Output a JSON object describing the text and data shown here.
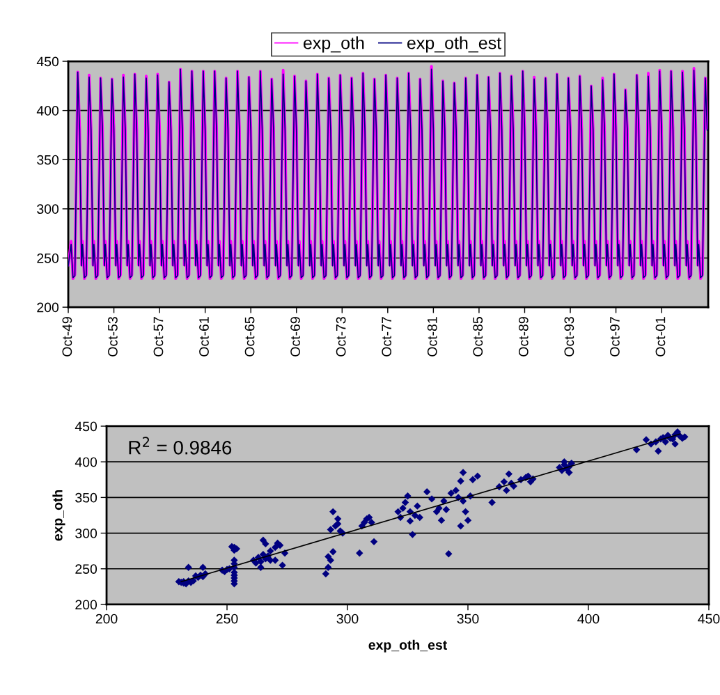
{
  "chart_data": [
    {
      "type": "line",
      "legend": "top",
      "grid": "y",
      "ylim": [
        200,
        450
      ],
      "yticks": [
        200,
        250,
        300,
        350,
        400,
        450
      ],
      "xlim": [
        "1949-10",
        "2005-11"
      ],
      "xticks": [
        {
          "value": "1949-10",
          "label": "Oct-49"
        },
        {
          "value": "1953-10",
          "label": "Oct-53"
        },
        {
          "value": "1957-10",
          "label": "Oct-57"
        },
        {
          "value": "1961-10",
          "label": "Oct-61"
        },
        {
          "value": "1965-10",
          "label": "Oct-65"
        },
        {
          "value": "1969-10",
          "label": "Oct-69"
        },
        {
          "value": "1973-10",
          "label": "Oct-73"
        },
        {
          "value": "1977-10",
          "label": "Oct-77"
        },
        {
          "value": "1981-10",
          "label": "Oct-81"
        },
        {
          "value": "1985-10",
          "label": "Oct-85"
        },
        {
          "value": "1989-10",
          "label": "Oct-89"
        },
        {
          "value": "1993-10",
          "label": "Oct-93"
        },
        {
          "value": "1997-10",
          "label": "Oct-97"
        },
        {
          "value": "2001-10",
          "label": "Oct-01"
        }
      ],
      "x": [
        "1949-10",
        "1950-01",
        "1950-03",
        "1950-05",
        "1950-08",
        "1950-10",
        "1950-12",
        "1951-01",
        "1951-03",
        "1951-05",
        "1951-08",
        "1951-10",
        "1951-12",
        "1952-01",
        "1952-03",
        "1952-05",
        "1952-08",
        "1952-10",
        "1952-12",
        "1953-01",
        "1953-03",
        "1953-05",
        "1953-08",
        "1953-10",
        "1953-12",
        "1954-01",
        "1954-03",
        "1954-05",
        "1954-08",
        "1954-10",
        "1954-12",
        "1955-01",
        "1955-03",
        "1955-05",
        "1955-08",
        "1955-10",
        "1955-12",
        "1956-01",
        "1956-03",
        "1956-05",
        "1956-08",
        "1956-10",
        "1956-12",
        "1957-01",
        "1957-03",
        "1957-05",
        "1957-08",
        "1957-10",
        "1957-12",
        "1958-01",
        "1958-03",
        "1958-05",
        "1958-08",
        "1958-10",
        "1958-12",
        "1959-01",
        "1959-03",
        "1959-05",
        "1959-08",
        "1959-10",
        "1959-12",
        "1960-01",
        "1960-03",
        "1960-05",
        "1960-08",
        "1960-10",
        "1960-12",
        "1961-01",
        "1961-03",
        "1961-05",
        "1961-08",
        "1961-10",
        "1961-12",
        "1962-01",
        "1962-03",
        "1962-05",
        "1962-08",
        "1962-10",
        "1962-12",
        "1963-01",
        "1963-03",
        "1963-05",
        "1963-08",
        "1963-10",
        "1963-12",
        "1964-01",
        "1964-03",
        "1964-05",
        "1964-08",
        "1964-10",
        "1964-12",
        "1965-01",
        "1965-03",
        "1965-05",
        "1965-08",
        "1965-10",
        "1965-12",
        "1966-01",
        "1966-03",
        "1966-05",
        "1966-08",
        "1966-10",
        "1966-12",
        "1967-01",
        "1967-03",
        "1967-05",
        "1967-08",
        "1967-10",
        "1967-12",
        "1968-01",
        "1968-03",
        "1968-05",
        "1968-08",
        "1968-10",
        "1968-12",
        "1969-01",
        "1969-03",
        "1969-05",
        "1969-08",
        "1969-10",
        "1969-12",
        "1970-01",
        "1970-03",
        "1970-05",
        "1970-08",
        "1970-10",
        "1970-12",
        "1971-01",
        "1971-03",
        "1971-05",
        "1971-08",
        "1971-10",
        "1971-12",
        "1972-01",
        "1972-03",
        "1972-05",
        "1972-08",
        "1972-10",
        "1972-12",
        "1973-01",
        "1973-03",
        "1973-05",
        "1973-08",
        "1973-10",
        "1973-12",
        "1974-01",
        "1974-03",
        "1974-05",
        "1974-08",
        "1974-10",
        "1974-12",
        "1975-01",
        "1975-03",
        "1975-05",
        "1975-08",
        "1975-10",
        "1975-12",
        "1976-01",
        "1976-03",
        "1976-05",
        "1976-08",
        "1976-10",
        "1976-12",
        "1977-01",
        "1977-03",
        "1977-05",
        "1977-08",
        "1977-10",
        "1977-12",
        "1978-01",
        "1978-03",
        "1978-05",
        "1978-08",
        "1978-10",
        "1978-12",
        "1979-01",
        "1979-03",
        "1979-05",
        "1979-08",
        "1979-10",
        "1979-12",
        "1980-01",
        "1980-03",
        "1980-05",
        "1980-08",
        "1980-10",
        "1980-12",
        "1981-01",
        "1981-03",
        "1981-05",
        "1981-08",
        "1981-10",
        "1981-12",
        "1982-01",
        "1982-03",
        "1982-05",
        "1982-08",
        "1982-10",
        "1982-12",
        "1983-01",
        "1983-03",
        "1983-05",
        "1983-08",
        "1983-10",
        "1983-12",
        "1984-01",
        "1984-03",
        "1984-05",
        "1984-08",
        "1984-10",
        "1984-12",
        "1985-01",
        "1985-03",
        "1985-05",
        "1985-08",
        "1985-10",
        "1985-12",
        "1986-01",
        "1986-03",
        "1986-05",
        "1986-08",
        "1986-10",
        "1986-12",
        "1987-01",
        "1987-03",
        "1987-05",
        "1987-08",
        "1987-10",
        "1987-12",
        "1988-01",
        "1988-03",
        "1988-05",
        "1988-08",
        "1988-10",
        "1988-12",
        "1989-01",
        "1989-03",
        "1989-05",
        "1989-08",
        "1989-10",
        "1989-12",
        "1990-01",
        "1990-03",
        "1990-05",
        "1990-08",
        "1990-10",
        "1990-12",
        "1991-01",
        "1991-03",
        "1991-05",
        "1991-08",
        "1991-10",
        "1991-12",
        "1992-01",
        "1992-03",
        "1992-05",
        "1992-08",
        "1992-10",
        "1992-12",
        "1993-01",
        "1993-03",
        "1993-05",
        "1993-08",
        "1993-10",
        "1993-12",
        "1994-01",
        "1994-03",
        "1994-05",
        "1994-08",
        "1994-10",
        "1994-12",
        "1995-01",
        "1995-03",
        "1995-05",
        "1995-08",
        "1995-10",
        "1995-12",
        "1996-01",
        "1996-03",
        "1996-05",
        "1996-08",
        "1996-10",
        "1996-12",
        "1997-01",
        "1997-03",
        "1997-05",
        "1997-08",
        "1997-10",
        "1997-12",
        "1998-01",
        "1998-03",
        "1998-05",
        "1998-08",
        "1998-10",
        "1998-12",
        "1999-01",
        "1999-03",
        "1999-05",
        "1999-08",
        "1999-10",
        "1999-12",
        "2000-01",
        "2000-03",
        "2000-05",
        "2000-08",
        "2000-10",
        "2000-12",
        "2001-01",
        "2001-03",
        "2001-05",
        "2001-08",
        "2001-10",
        "2001-12",
        "2002-01",
        "2002-03",
        "2002-05",
        "2002-08",
        "2002-10",
        "2002-12",
        "2003-01",
        "2003-03",
        "2003-05",
        "2003-08",
        "2003-10",
        "2003-12",
        "2004-01",
        "2004-03",
        "2004-05",
        "2004-08",
        "2004-10",
        "2004-12",
        "2005-01",
        "2005-03",
        "2005-05",
        "2005-08",
        "2005-10"
      ],
      "series": [
        {
          "name": "exp_oth",
          "color": "#ff00ff",
          "values": [
            243,
            267,
            229,
            233,
            439,
            382,
            243,
            267,
            229,
            233,
            436,
            382,
            243,
            267,
            229,
            233,
            433,
            382,
            243,
            267,
            229,
            233,
            432,
            382,
            243,
            267,
            229,
            233,
            436,
            382,
            243,
            267,
            229,
            233,
            437,
            382,
            243,
            267,
            229,
            233,
            435,
            382,
            243,
            267,
            229,
            233,
            437,
            382,
            243,
            267,
            229,
            233,
            429,
            382,
            243,
            267,
            229,
            233,
            442,
            382,
            243,
            267,
            229,
            233,
            440,
            382,
            243,
            267,
            229,
            233,
            440,
            382,
            243,
            267,
            229,
            233,
            440,
            382,
            243,
            267,
            229,
            233,
            433,
            382,
            243,
            267,
            229,
            233,
            440,
            382,
            243,
            267,
            229,
            233,
            434,
            382,
            243,
            267,
            229,
            233,
            440,
            382,
            243,
            267,
            229,
            233,
            432,
            382,
            243,
            267,
            229,
            233,
            441,
            382,
            243,
            267,
            229,
            233,
            435,
            382,
            243,
            267,
            229,
            233,
            430,
            382,
            243,
            267,
            229,
            233,
            437,
            382,
            243,
            267,
            229,
            233,
            433,
            382,
            243,
            267,
            229,
            233,
            436,
            382,
            243,
            267,
            229,
            233,
            433,
            382,
            243,
            267,
            229,
            233,
            438,
            382,
            243,
            267,
            229,
            233,
            432,
            382,
            243,
            267,
            229,
            233,
            436,
            382,
            243,
            267,
            229,
            233,
            433,
            382,
            243,
            267,
            229,
            233,
            438,
            382,
            243,
            267,
            229,
            233,
            432,
            382,
            243,
            267,
            229,
            233,
            445,
            382,
            243,
            267,
            229,
            233,
            430,
            382,
            243,
            267,
            229,
            233,
            428,
            382,
            243,
            267,
            229,
            233,
            433,
            382,
            243,
            267,
            229,
            233,
            436,
            382,
            243,
            267,
            229,
            233,
            434,
            382,
            243,
            267,
            229,
            233,
            438,
            382,
            243,
            267,
            229,
            233,
            435,
            382,
            243,
            267,
            229,
            233,
            440,
            382,
            243,
            267,
            229,
            233,
            434,
            382,
            243,
            267,
            229,
            233,
            433,
            382,
            243,
            267,
            229,
            233,
            437,
            382,
            243,
            267,
            229,
            233,
            433,
            382,
            243,
            267,
            229,
            233,
            435,
            382,
            243,
            267,
            229,
            233,
            425,
            382,
            243,
            267,
            229,
            233,
            433,
            382,
            243,
            267,
            229,
            233,
            437,
            382,
            243,
            267,
            229,
            233,
            421,
            382,
            243,
            267,
            229,
            233,
            436,
            382,
            243,
            267,
            229,
            233,
            438,
            382,
            243,
            267,
            229,
            233,
            441,
            382,
            243,
            267,
            229,
            233,
            440,
            382,
            243,
            267,
            229,
            233,
            440,
            382,
            243,
            267,
            229,
            233,
            443,
            382,
            243,
            267,
            229,
            233,
            433,
            382
          ]
        },
        {
          "name": "exp_oth_est",
          "color": "#000080",
          "values": [
            242,
            264,
            230,
            232,
            439,
            380,
            242,
            264,
            230,
            232,
            434,
            380,
            242,
            264,
            230,
            232,
            433,
            380,
            242,
            264,
            230,
            232,
            432,
            380,
            242,
            264,
            230,
            232,
            434,
            380,
            242,
            264,
            230,
            232,
            437,
            380,
            242,
            264,
            230,
            232,
            433,
            380,
            242,
            264,
            230,
            232,
            436,
            380,
            242,
            264,
            230,
            232,
            429,
            380,
            242,
            264,
            230,
            232,
            442,
            380,
            242,
            264,
            230,
            232,
            440,
            380,
            242,
            264,
            230,
            232,
            440,
            380,
            242,
            264,
            230,
            232,
            440,
            380,
            242,
            264,
            230,
            232,
            433,
            380,
            242,
            264,
            230,
            232,
            440,
            380,
            242,
            264,
            230,
            232,
            434,
            380,
            242,
            264,
            230,
            232,
            440,
            380,
            242,
            264,
            230,
            232,
            432,
            380,
            242,
            264,
            230,
            232,
            437,
            380,
            242,
            264,
            230,
            232,
            435,
            380,
            242,
            264,
            230,
            232,
            430,
            380,
            242,
            264,
            230,
            232,
            437,
            380,
            242,
            264,
            230,
            232,
            433,
            380,
            242,
            264,
            230,
            232,
            436,
            380,
            242,
            264,
            230,
            232,
            433,
            380,
            242,
            264,
            230,
            232,
            438,
            380,
            242,
            264,
            230,
            232,
            432,
            380,
            242,
            264,
            230,
            232,
            436,
            380,
            242,
            264,
            230,
            232,
            433,
            380,
            242,
            264,
            230,
            232,
            438,
            380,
            242,
            264,
            230,
            232,
            432,
            380,
            242,
            264,
            230,
            232,
            442,
            380,
            242,
            264,
            230,
            232,
            430,
            380,
            242,
            264,
            230,
            232,
            428,
            380,
            242,
            264,
            230,
            232,
            433,
            380,
            242,
            264,
            230,
            232,
            436,
            380,
            242,
            264,
            230,
            232,
            434,
            380,
            242,
            264,
            230,
            232,
            438,
            380,
            242,
            264,
            230,
            232,
            435,
            380,
            242,
            264,
            230,
            232,
            440,
            380,
            242,
            264,
            230,
            232,
            432,
            380,
            242,
            264,
            230,
            232,
            433,
            380,
            242,
            264,
            230,
            232,
            437,
            380,
            242,
            264,
            230,
            232,
            433,
            380,
            242,
            264,
            230,
            232,
            435,
            380,
            242,
            264,
            230,
            232,
            425,
            380,
            242,
            264,
            230,
            232,
            431,
            380,
            242,
            264,
            230,
            232,
            437,
            380,
            242,
            264,
            230,
            232,
            421,
            380,
            242,
            264,
            230,
            232,
            436,
            380,
            242,
            264,
            230,
            232,
            435,
            380,
            242,
            264,
            230,
            232,
            440,
            380,
            242,
            264,
            230,
            232,
            440,
            380,
            242,
            264,
            230,
            232,
            439,
            380,
            242,
            264,
            230,
            232,
            441,
            380,
            242,
            264,
            230,
            232,
            433,
            380
          ]
        }
      ]
    },
    {
      "type": "scatter",
      "xlabel": "exp_oth_est",
      "ylabel": "exp_oth",
      "grid": "y",
      "marker": "diamond",
      "annotations": [
        "R$^{2}$ = 0.9846"
      ],
      "xlim": [
        200,
        450
      ],
      "xticks": [
        200,
        250,
        300,
        350,
        400,
        450
      ],
      "ylim": [
        200,
        450
      ],
      "yticks": [
        200,
        250,
        300,
        350,
        400,
        450
      ],
      "series": [
        {
          "color": "#000080",
          "x": [
            231,
            232,
            232,
            234,
            235,
            236,
            233,
            230,
            234,
            237,
            238,
            239,
            240,
            240,
            241,
            248,
            249,
            250,
            251,
            253,
            253,
            253,
            253,
            253,
            253,
            253,
            253,
            253,
            253,
            254,
            252,
            261,
            262,
            263,
            264,
            265,
            266,
            264,
            267,
            268,
            266,
            270,
            271,
            272,
            270,
            273,
            265,
            268,
            274,
            291,
            292,
            293,
            292,
            294,
            293,
            295,
            296,
            294,
            297,
            298,
            296,
            305,
            306,
            307,
            308,
            309,
            310,
            311,
            321,
            322,
            323,
            324,
            325,
            326,
            326,
            327,
            328,
            329,
            330,
            333,
            335,
            337,
            338,
            339,
            340,
            341,
            342,
            343,
            345,
            346,
            347,
            348,
            348,
            349,
            350,
            347,
            352,
            354,
            351,
            360,
            363,
            365,
            366,
            367,
            368,
            369,
            372,
            374,
            375,
            376,
            377,
            388,
            389,
            390,
            391,
            392,
            393,
            390,
            392,
            420,
            424,
            426,
            428,
            429,
            430,
            431,
            432,
            433,
            434,
            435,
            436,
            437,
            438,
            439,
            436,
            440,
            433
          ],
          "values": [
            231,
            230,
            232,
            233,
            231,
            233,
            229,
            232,
            252,
            240,
            238,
            241,
            239,
            252,
            243,
            248,
            246,
            249,
            250,
            229,
            233,
            237,
            241,
            245,
            252,
            257,
            262,
            276,
            280,
            278,
            281,
            262,
            258,
            266,
            260,
            270,
            264,
            252,
            268,
            262,
            285,
            280,
            286,
            283,
            262,
            255,
            290,
            275,
            272,
            243,
            252,
            262,
            267,
            274,
            305,
            310,
            313,
            330,
            303,
            300,
            320,
            272,
            310,
            315,
            320,
            322,
            315,
            288,
            330,
            322,
            335,
            343,
            352,
            330,
            317,
            298,
            325,
            338,
            322,
            358,
            348,
            330,
            335,
            318,
            345,
            333,
            271,
            356,
            360,
            350,
            373,
            385,
            345,
            330,
            318,
            310,
            375,
            380,
            352,
            343,
            365,
            372,
            360,
            383,
            370,
            366,
            375,
            378,
            380,
            372,
            376,
            392,
            388,
            396,
            390,
            385,
            398,
            400,
            393,
            417,
            431,
            425,
            428,
            415,
            432,
            434,
            428,
            436,
            433,
            432,
            438,
            442,
            436,
            433,
            425,
            435,
            437
          ]
        },
        {
          "type": "line",
          "marker": "none",
          "color": "#000000",
          "x": [
            231,
            438
          ],
          "values": [
            232,
            439
          ]
        }
      ]
    }
  ]
}
